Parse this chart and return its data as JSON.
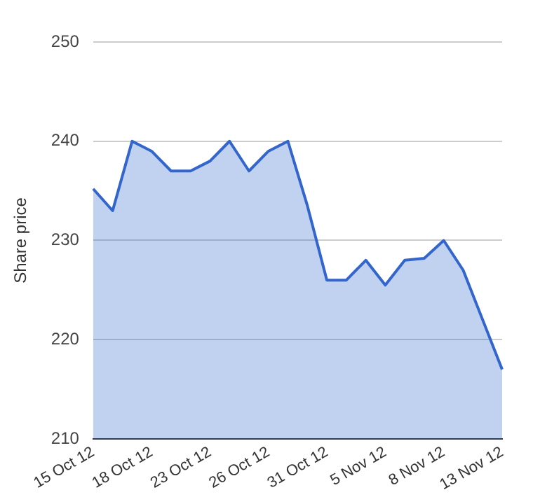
{
  "chart_data": {
    "type": "area",
    "ylabel": "Share price",
    "categories": [
      "15 Oct 12",
      null,
      null,
      "18 Oct 12",
      null,
      null,
      "23 Oct 12",
      null,
      null,
      "26 Oct 12",
      null,
      null,
      "31 Oct 12",
      null,
      null,
      "5 Nov 12",
      null,
      null,
      "8 Nov 12",
      null,
      null,
      "13 Nov 12"
    ],
    "series": [
      {
        "color": "#3366cc",
        "values": [
          235.2,
          233,
          240,
          239,
          237,
          237,
          238,
          240,
          237,
          239,
          240,
          233.5,
          226,
          226,
          228,
          225.5,
          228,
          228.2,
          230,
          227,
          222,
          217
        ]
      }
    ],
    "ylim": [
      210,
      250
    ],
    "yticks": [
      210,
      220,
      230,
      240,
      250
    ],
    "grid": "y",
    "legend": false,
    "marker": "none"
  }
}
